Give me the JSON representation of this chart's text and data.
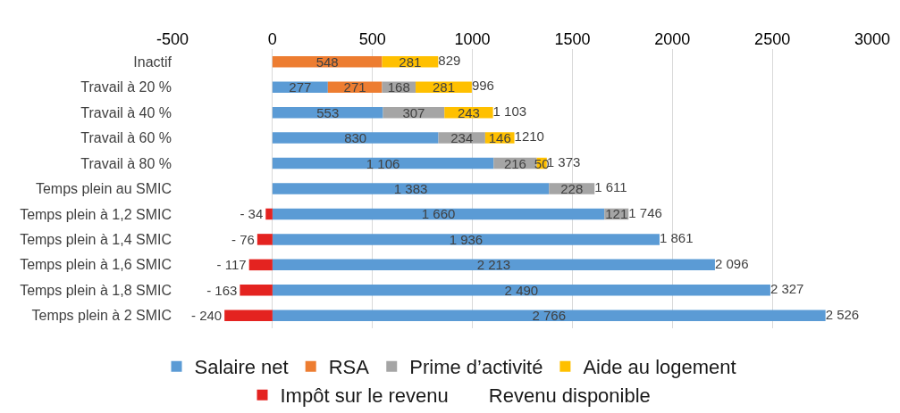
{
  "chart_data": {
    "type": "bar",
    "orientation": "horizontal",
    "stacked": true,
    "categories": [
      "Inactif",
      "Travail à 20 %",
      "Travail à 40 %",
      "Travail à 60 %",
      "Travail à 80 %",
      "Temps plein au SMIC",
      "Temps plein à 1,2 SMIC",
      "Temps plein à 1,4 SMIC",
      "Temps plein à 1,6 SMIC",
      "Temps plein à 1,8 SMIC",
      "Temps plein à 2 SMIC"
    ],
    "series": [
      {
        "name": "Salaire net",
        "color": "#5b9bd5",
        "values": [
          null,
          277,
          553,
          830,
          1106,
          1383,
          1660,
          1936,
          2213,
          2490,
          2766
        ],
        "value_labels": [
          null,
          "277",
          "553",
          "830",
          "1 106",
          "1 383",
          "1 660",
          "1 936",
          "2 213",
          "2 490",
          "2 766"
        ]
      },
      {
        "name": "RSA",
        "color": "#ed7d31",
        "values": [
          548,
          271,
          null,
          null,
          null,
          null,
          null,
          null,
          null,
          null,
          null
        ],
        "value_labels": [
          "548",
          "271",
          null,
          null,
          null,
          null,
          null,
          null,
          null,
          null,
          null
        ]
      },
      {
        "name": "Prime d’activité",
        "color": "#a5a5a5",
        "values": [
          null,
          168,
          307,
          234,
          216,
          228,
          121,
          null,
          null,
          null,
          null
        ],
        "value_labels": [
          null,
          "168",
          "307",
          "234",
          "216",
          "228",
          "121",
          null,
          null,
          null,
          null
        ]
      },
      {
        "name": "Aide au logement",
        "color": "#ffc000",
        "values": [
          281,
          281,
          243,
          146,
          50,
          null,
          null,
          null,
          null,
          null,
          null
        ],
        "value_labels": [
          "281",
          "281",
          "243",
          "146",
          "50",
          null,
          null,
          null,
          null,
          null,
          null
        ]
      },
      {
        "name": "Impôt sur le revenu",
        "color": "#e42320",
        "values": [
          null,
          null,
          null,
          null,
          null,
          null,
          -34,
          -76,
          -117,
          -163,
          -240
        ],
        "value_labels": [
          null,
          null,
          null,
          null,
          null,
          null,
          "- 34",
          "- 76",
          "- 117",
          "- 163",
          "- 240"
        ]
      },
      {
        "name": "Revenu disponible",
        "values": [
          null,
          null,
          null,
          null,
          null,
          null,
          null,
          null,
          null,
          null,
          null
        ]
      }
    ],
    "totals": [
      "829",
      "996",
      "1 103",
      "1210",
      "1 373",
      "1 611",
      "1 746",
      "1 861",
      "2 096",
      "2 327",
      "2 526"
    ],
    "xlim": [
      -500,
      3000
    ],
    "xticks": [
      -500,
      0,
      500,
      1000,
      1500,
      2000,
      2500,
      3000
    ],
    "grid": "x",
    "legend": "bottom"
  }
}
